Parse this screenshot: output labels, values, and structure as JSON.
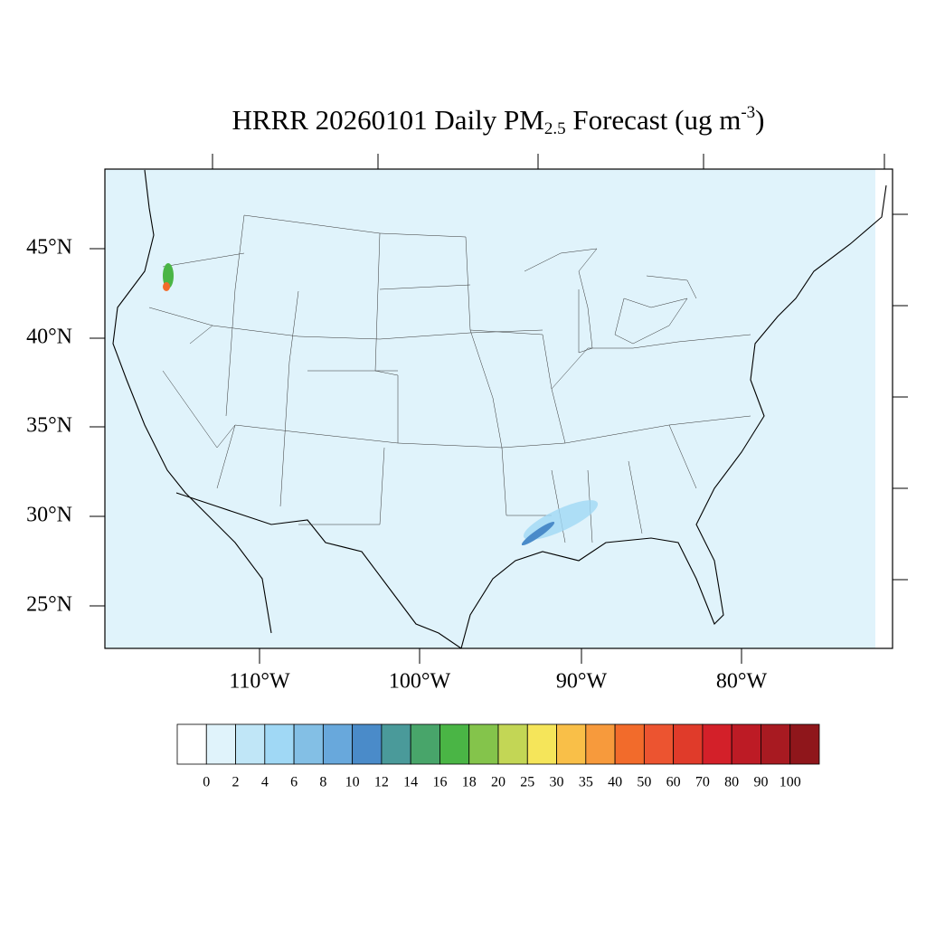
{
  "title": {
    "main": "HRRR 20260101 Daily PM",
    "sub": "2.5",
    "rest": " Forecast (ug m",
    "sup": "-3",
    "end": ")"
  },
  "map": {
    "lat_labels": [
      "45°N",
      "40°N",
      "35°N",
      "30°N",
      "25°N"
    ],
    "lon_labels": [
      "110°W",
      "100°W",
      "90°W",
      "80°W"
    ]
  },
  "colorbar": {
    "levels": [
      0,
      2,
      4,
      6,
      8,
      10,
      12,
      14,
      16,
      18,
      20,
      25,
      30,
      35,
      40,
      50,
      60,
      70,
      80,
      90,
      100
    ],
    "colors": [
      "#ffffff",
      "#e0f3fb",
      "#c0e6f7",
      "#a0d8f5",
      "#83bfe5",
      "#68a8dc",
      "#4a8bc9",
      "#4a9a9a",
      "#48a56a",
      "#4ab545",
      "#84c44b",
      "#c3d655",
      "#f5e55a",
      "#f9bf48",
      "#f79a3c",
      "#f26b2b",
      "#ec5430",
      "#e03b2a",
      "#d32029",
      "#bd1b25",
      "#a81a21",
      "#8f161b"
    ]
  }
}
